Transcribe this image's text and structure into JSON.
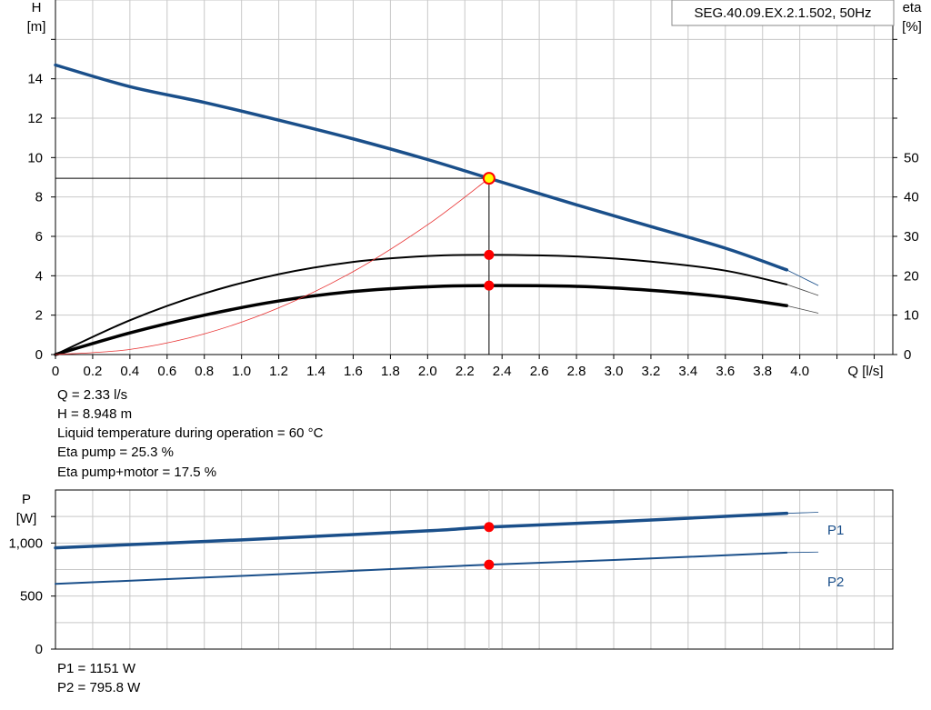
{
  "pump_label": "SEG.40.09.EX.2.1.502, 50Hz",
  "colors": {
    "head": "#1a4f8a",
    "eta": "#000000",
    "system": "#e83030",
    "point": "#ff0000",
    "point_highlight": "#ffff00",
    "grid": "#c8c8c8"
  },
  "chart_data": [
    {
      "type": "line",
      "title": "",
      "xlabel": "Q [l/s]",
      "ylabel": "H [m]",
      "y2label": "eta [%]",
      "ylabel_name": "H",
      "ylabel_unit": "[m]",
      "y2label_name": "eta",
      "y2label_unit": "[%]",
      "xlim": [
        0,
        4.5
      ],
      "ylim": [
        0,
        18
      ],
      "y2lim": [
        0,
        90
      ],
      "x_ticks": [
        "0",
        "0.2",
        "0.4",
        "0.6",
        "0.8",
        "1.0",
        "1.2",
        "1.4",
        "1.6",
        "1.8",
        "2.0",
        "2.2",
        "2.4",
        "2.6",
        "2.8",
        "3.0",
        "3.2",
        "3.4",
        "3.6",
        "3.8",
        "4.0"
      ],
      "y_ticks": [
        "0",
        "2",
        "4",
        "6",
        "8",
        "10",
        "12",
        "14"
      ],
      "y2_ticks": [
        "0",
        "10",
        "20",
        "30",
        "40",
        "50"
      ],
      "grid": true,
      "series": [
        {
          "role": "head",
          "x": [
            0,
            0.4,
            0.8,
            1.2,
            1.6,
            2.0,
            2.33,
            2.8,
            3.2,
            3.6,
            3.93
          ],
          "y": [
            14.7,
            13.6,
            12.8,
            11.9,
            10.95,
            9.9,
            8.948,
            7.6,
            6.5,
            5.4,
            4.3
          ],
          "ext_x": [
            3.93,
            4.1
          ],
          "ext_y": [
            4.3,
            3.5
          ]
        },
        {
          "role": "eta-pump",
          "axis": "eta",
          "x": [
            0,
            0.4,
            0.8,
            1.2,
            1.6,
            2.0,
            2.33,
            2.8,
            3.2,
            3.6,
            3.93
          ],
          "y": [
            0,
            8.7,
            15.5,
            20.4,
            23.5,
            25.0,
            25.3,
            24.9,
            23.6,
            21.3,
            17.8
          ],
          "ext_x": [
            3.93,
            4.1
          ],
          "ext_y": [
            17.8,
            15.0
          ]
        },
        {
          "role": "eta-pump-motor",
          "axis": "eta",
          "x": [
            0,
            0.4,
            0.8,
            1.2,
            1.6,
            2.0,
            2.33,
            2.8,
            3.2,
            3.6,
            3.93
          ],
          "y": [
            0,
            5.5,
            10.0,
            13.6,
            16.0,
            17.2,
            17.5,
            17.3,
            16.3,
            14.6,
            12.4
          ],
          "ext_x": [
            3.93,
            4.1
          ],
          "ext_y": [
            12.4,
            10.5
          ]
        },
        {
          "role": "system",
          "x": [
            0,
            0.4,
            0.8,
            1.2,
            1.6,
            2.0,
            2.33
          ],
          "y": [
            0,
            0.26,
            1.05,
            2.37,
            4.21,
            6.59,
            8.948
          ]
        }
      ],
      "duty_point": {
        "q": 2.33,
        "h": 8.948,
        "eta_pump": 25.3,
        "eta_total": 17.5
      }
    },
    {
      "type": "line",
      "title": "",
      "xlabel": "",
      "ylabel": "P [W]",
      "ylabel_name": "P",
      "ylabel_unit": "[W]",
      "xlim": [
        0,
        4.5
      ],
      "ylim": [
        0,
        1500
      ],
      "y_ticks": [
        "0",
        "500",
        "1,000"
      ],
      "grid": true,
      "series": [
        {
          "name": "P1",
          "x": [
            0,
            1.0,
            2.0,
            2.33,
            3.0,
            3.93
          ],
          "y": [
            955,
            1030,
            1115,
            1151,
            1200,
            1280
          ],
          "ext_x": [
            3.93,
            4.1
          ],
          "ext_y": [
            1280,
            1290
          ]
        },
        {
          "name": "P2",
          "x": [
            0,
            1.0,
            2.0,
            2.33,
            3.0,
            3.93
          ],
          "y": [
            615,
            690,
            770,
            795.8,
            840,
            910
          ],
          "ext_x": [
            3.93,
            4.1
          ],
          "ext_y": [
            910,
            915
          ]
        }
      ],
      "duty_point": {
        "q": 2.33,
        "p1": 1151,
        "p2": 795.8
      }
    }
  ],
  "info_lines": [
    "Q = 2.33 l/s",
    "H = 8.948 m",
    "Liquid temperature during operation = 60 °C",
    "Eta pump = 25.3 %",
    "Eta pump+motor = 17.5 %"
  ],
  "power_lines": [
    "P1 = 1151 W",
    "P2 = 795.8 W"
  ]
}
